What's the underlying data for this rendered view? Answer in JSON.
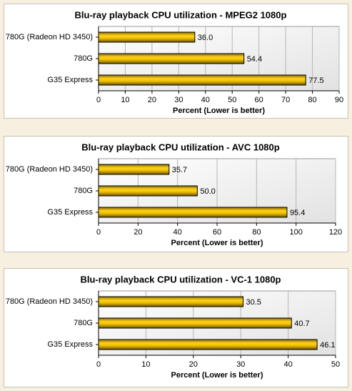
{
  "chart_data": [
    {
      "type": "bar",
      "orientation": "horizontal",
      "title": "Blu-ray playback CPU utilization - MPEG2 1080p",
      "categories": [
        "780G (Radeon HD 3450)",
        "780G",
        "G35 Express"
      ],
      "values": [
        36,
        54.4,
        77.5
      ],
      "value_labels": [
        "36.0",
        "54.4",
        "77.5"
      ],
      "color": "#f0c000",
      "xlabel": "Percent (Lower is better)",
      "xlim": [
        0,
        90
      ],
      "xticks": [
        0,
        10,
        20,
        30,
        40,
        50,
        60,
        70,
        80,
        90
      ],
      "grid": true
    },
    {
      "type": "bar",
      "orientation": "horizontal",
      "title": "Blu-ray playback CPU utilization - AVC 1080p",
      "categories": [
        "780G (Radeon HD 3450)",
        "780G",
        "G35 Express"
      ],
      "values": [
        35.7,
        50,
        95.4
      ],
      "value_labels": [
        "35.7",
        "50.0",
        "95.4"
      ],
      "color": "#f0c000",
      "xlabel": "Percent (Lower is better)",
      "xlim": [
        0,
        120
      ],
      "xticks": [
        0,
        20,
        40,
        60,
        80,
        100,
        120
      ],
      "grid": true
    },
    {
      "type": "bar",
      "orientation": "horizontal",
      "title": "Blu-ray playback CPU utilization - VC-1 1080p",
      "categories": [
        "780G (Radeon HD 3450)",
        "780G",
        "G35 Express"
      ],
      "values": [
        30.5,
        40.7,
        46.1
      ],
      "value_labels": [
        "30.5",
        "40.7",
        "46.1"
      ],
      "color": "#f0c000",
      "xlabel": "Percent (Lower is better)",
      "xlim": [
        0,
        50
      ],
      "xticks": [
        0,
        10,
        20,
        30,
        40,
        50
      ],
      "grid": true
    }
  ]
}
